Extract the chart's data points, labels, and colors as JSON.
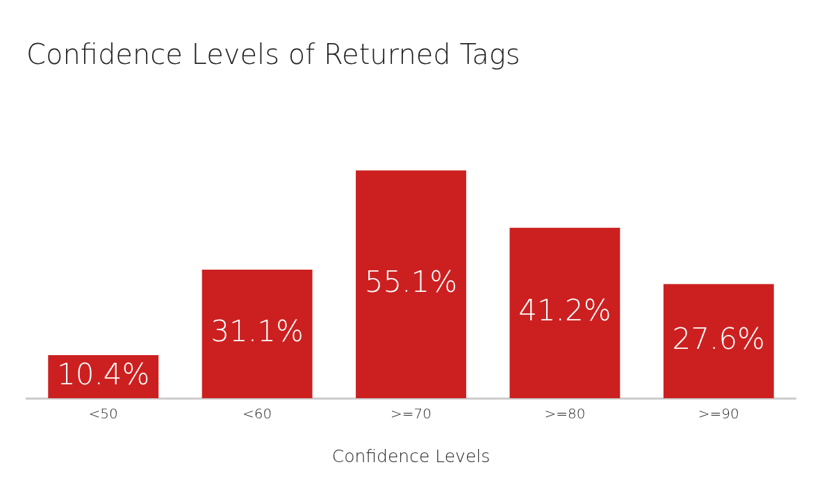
{
  "chart_data": {
    "type": "bar",
    "title": "Confidence Levels of Returned Tags",
    "xlabel": "Confidence Levels",
    "categories": [
      "<50",
      "<60",
      ">=70",
      ">=80",
      ">=90"
    ],
    "values": [
      10.4,
      31.1,
      55.1,
      41.2,
      27.6
    ],
    "value_labels": [
      "10.4%",
      "31.1%",
      "55.1%",
      "41.2%",
      "27.6%"
    ],
    "color": "#cc2020",
    "grid": false,
    "legend": false
  }
}
